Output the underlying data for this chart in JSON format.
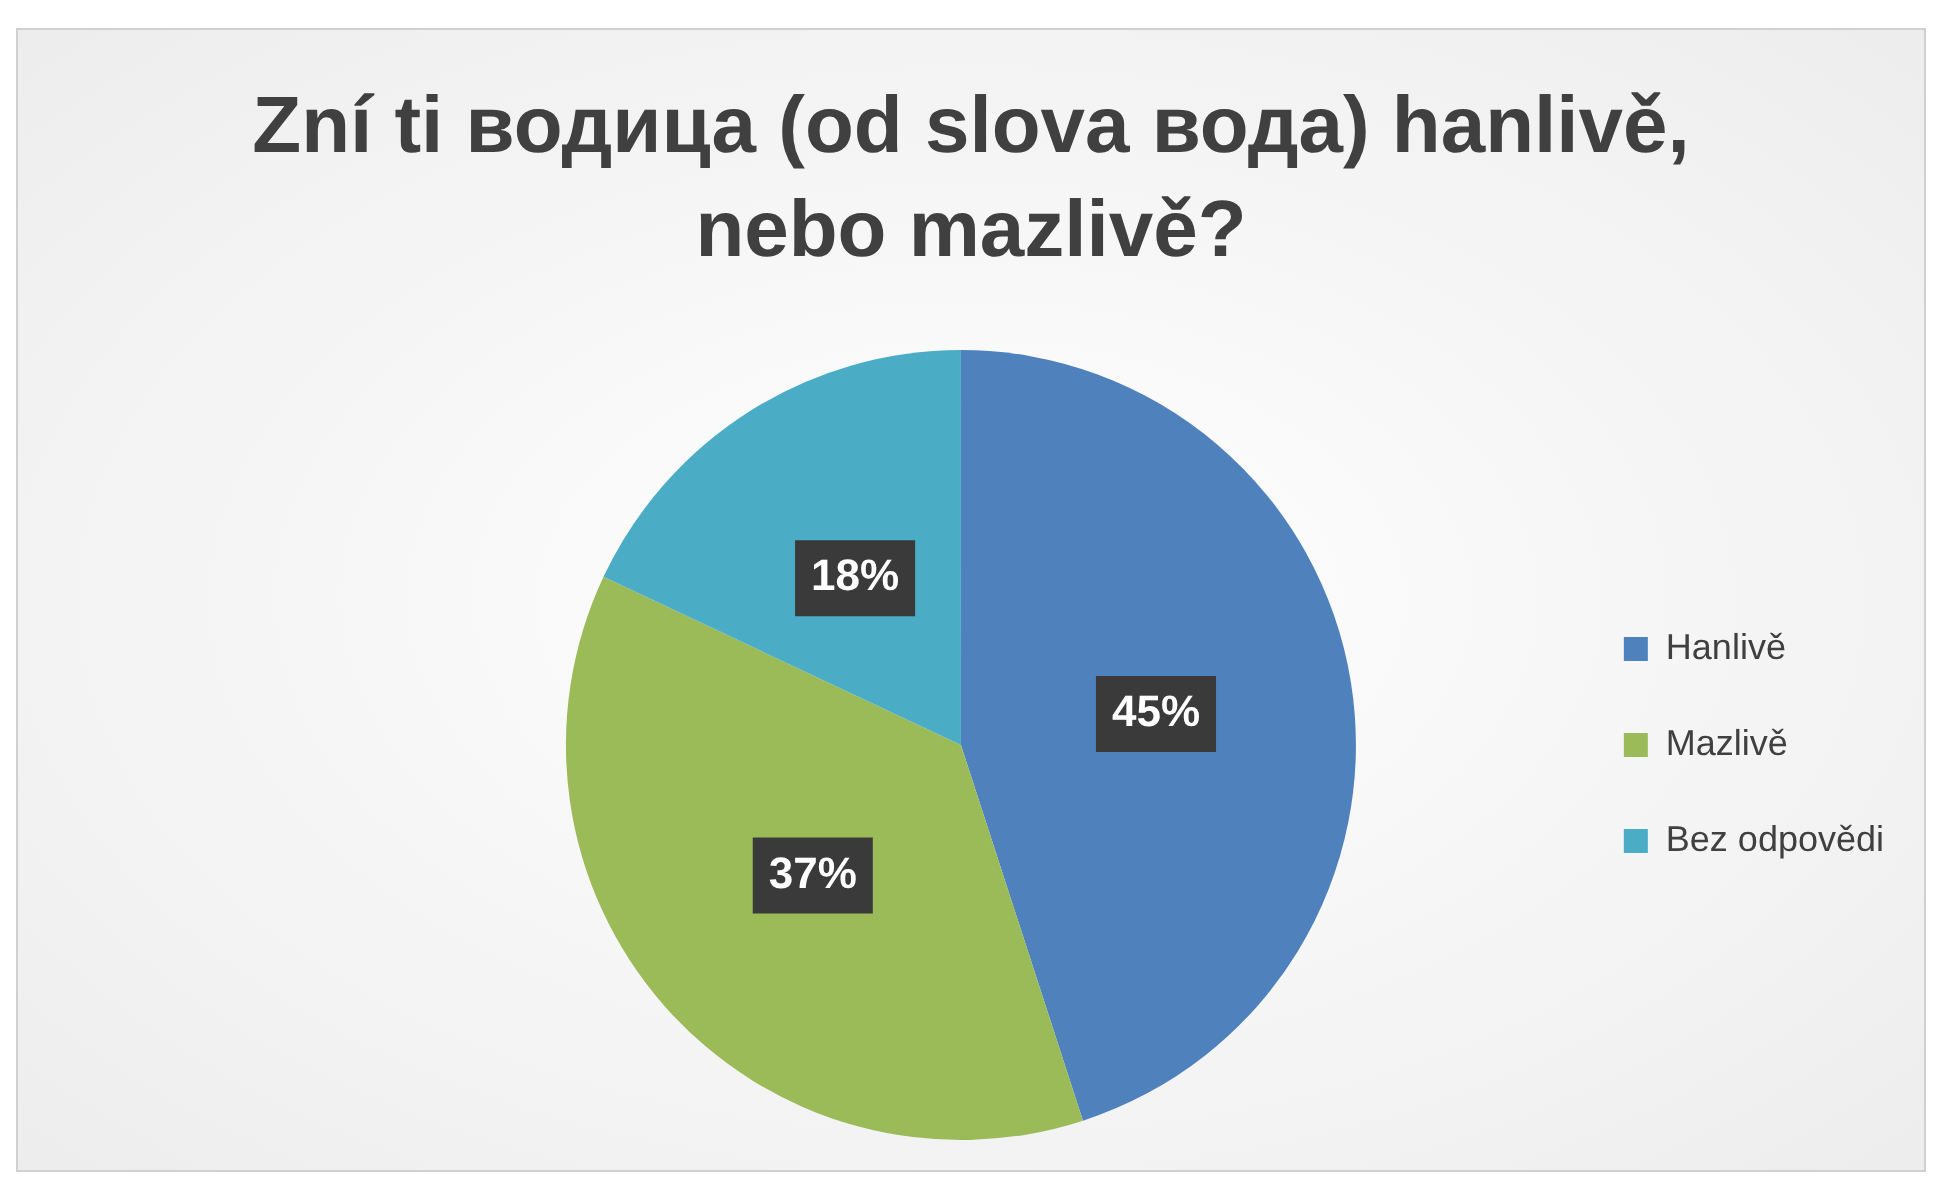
{
  "chart_data": {
    "type": "pie",
    "title": "Zní ti водица (od slova вода) hanlivě, nebo mazlivě?",
    "categories": [
      "Hanlivě",
      "Mazlivě",
      "Bez odpovědi"
    ],
    "values": [
      45,
      37,
      18
    ],
    "colors": [
      "#4f81bd",
      "#9bbb59",
      "#4bacc6"
    ],
    "value_labels": [
      "45%",
      "37%",
      "18%"
    ],
    "legend": "right"
  }
}
